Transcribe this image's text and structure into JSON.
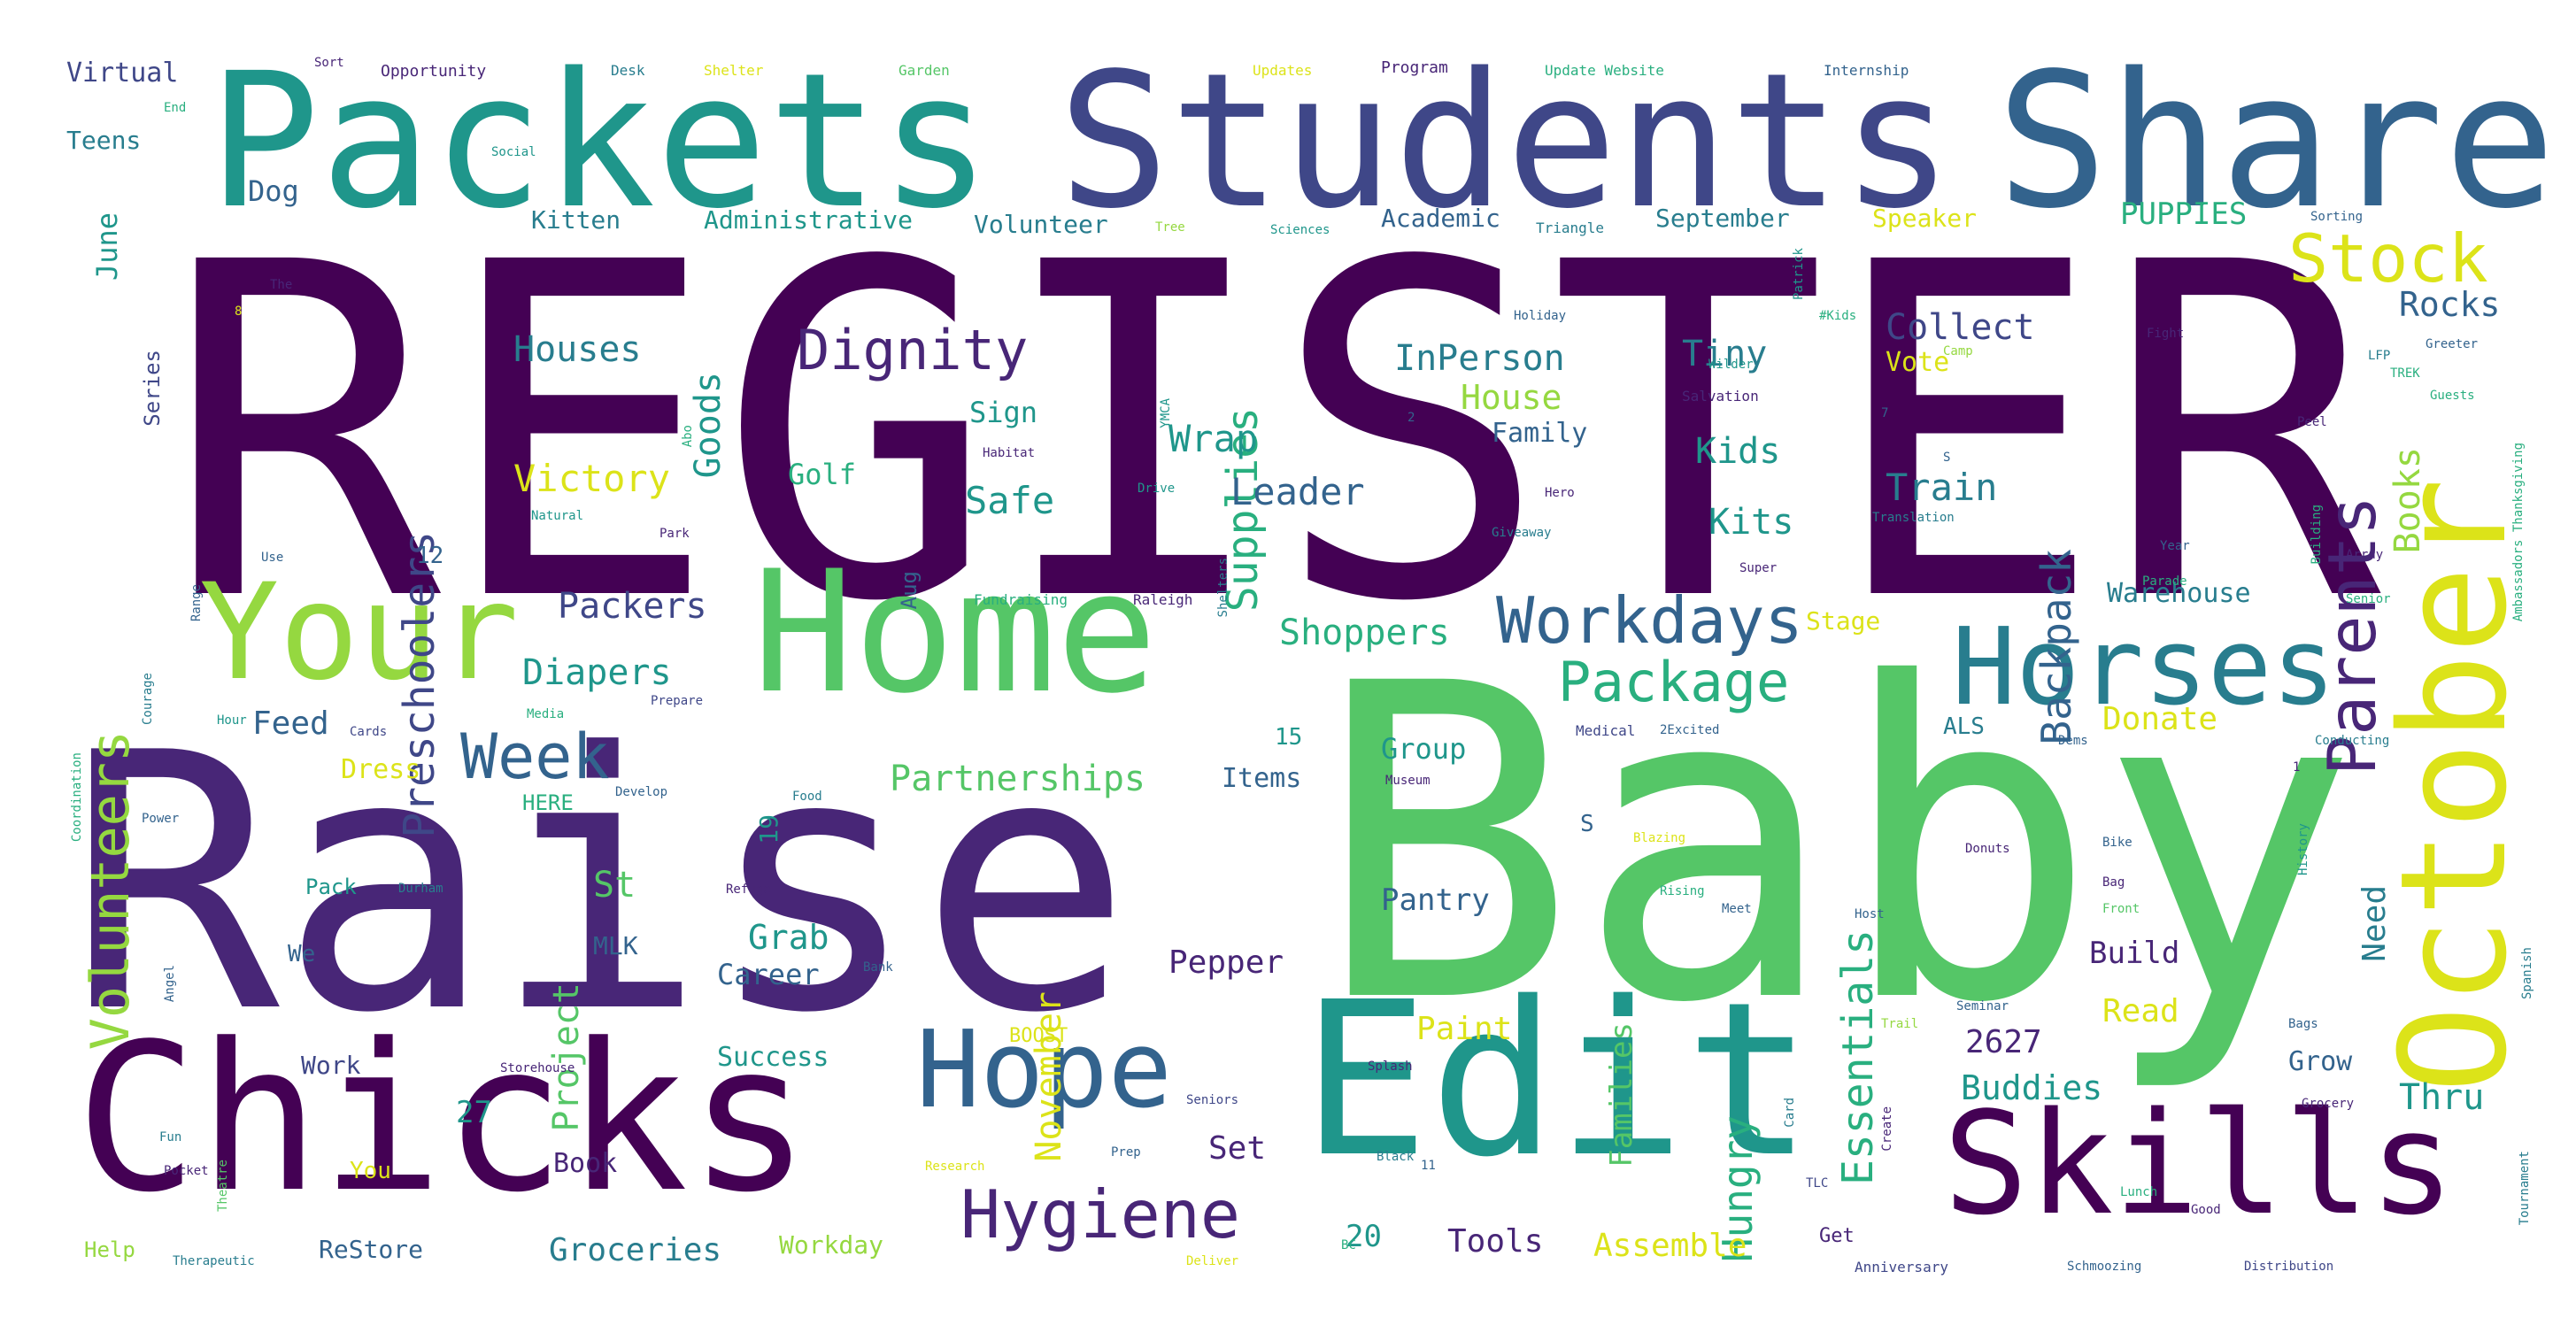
{
  "words": {
    "register": "REGISTER",
    "raise": "Raise",
    "baby": "Baby",
    "packets": "Packets",
    "students": "Students",
    "share": "Share",
    "home": "Home",
    "your": "Your",
    "chicks": "Chicks",
    "edit": "Edit",
    "skills": "Skills",
    "october": "October",
    "horses": "Horses",
    "hope": "Hope",
    "hygiene": "Hygiene",
    "workdays": "Workdays",
    "package": "Package",
    "week": "Week",
    "dignity": "Dignity",
    "parents": "Parents",
    "stock": "Stock",
    "volunteers": "Volunteers",
    "preschoolers": "Preschoolers",
    "goods": "Goods",
    "supplies": "Supplies",
    "backpack": "Backpack",
    "books": "Books",
    "essentials": "Essentials",
    "hungry": "Hungry",
    "november": "November",
    "project": "Project",
    "partnerships": "Partnerships",
    "victory": "Victory",
    "diapers": "Diapers",
    "packers": "Packers",
    "shoppers": "Shoppers",
    "leader": "Leader",
    "wrap": "Wrap",
    "safe": "Safe",
    "houses": "Houses",
    "inperson": "InPerson",
    "house": "House",
    "tiny": "Tiny",
    "kids": "Kids",
    "kits": "Kits",
    "collect": "Collect",
    "train": "Train",
    "rocks": "Rocks",
    "vote": "Vote",
    "family": "Family",
    "golf": "Golf",
    "sign": "Sign",
    "feed": "Feed",
    "dress": "Dress",
    "donate": "Donate",
    "group": "Group",
    "items": "Items",
    "pantry": "Pantry",
    "pepper": "Pepper",
    "grab": "Grab",
    "career": "Career",
    "st": "St",
    "mlk": "MLK",
    "build": "Build",
    "read": "Read",
    "need": "Need",
    "grow": "Grow",
    "thru": "Thru",
    "buddies": "Buddies",
    "n2627": "2627",
    "families": "Families",
    "tools": "Tools",
    "assemble": "Assemble",
    "groceries": "Groceries",
    "paint": "Paint",
    "set": "Set",
    "book": "Book",
    "success": "Success",
    "work": "Work",
    "n27": "27",
    "n20": "20",
    "restore": "ReStore",
    "workday": "Workday",
    "warehouse": "Warehouse",
    "stage": "Stage",
    "puppies": "PUPPIES",
    "speaker": "Speaker",
    "academic": "Academic",
    "september": "September",
    "volunteer": "Volunteer",
    "administrative": "Administrative",
    "kitten": "Kitten",
    "dog": "Dog",
    "june": "June",
    "teens": "Teens",
    "virtual": "Virtual",
    "series": "Series",
    "aug": "Aug",
    "n19": "19",
    "n12": "12",
    "here": "HERE",
    "pack": "Pack",
    "we": "We",
    "help": "Help",
    "boost": "BOOST",
    "you": "You",
    "als": "ALS",
    "n15": "15",
    "s": "S",
    "opportunity": "Opportunity",
    "desk": "Desk",
    "shelter": "Shelter",
    "garden": "Garden",
    "updates": "Updates",
    "program": "Program",
    "update_website": "Update Website",
    "internship": "Internship",
    "sort": "Sort",
    "end": "End",
    "social": "Social",
    "tree": "Tree",
    "sciences": "Sciences",
    "triangle": "Triangle",
    "patrick": "Patrick",
    "sorting": "Sorting",
    "holiday": "Holiday",
    "fight": "Fight",
    "greeter": "Greeter",
    "salvation": "Salvation",
    "translation": "Translation",
    "giveaway": "Giveaway",
    "natural": "Natural",
    "park": "Park",
    "fundraising": "Fundraising",
    "raleigh": "Raleigh",
    "shelters": "Shelters",
    "super": "Super",
    "parade": "Parade",
    "medical": "Medical",
    "2excited": "2Excited",
    "conducting": "Conducting",
    "museum": "Museum",
    "develop": "Develop",
    "food": "Food",
    "refuge": "Refuge",
    "durham": "Durham",
    "bank": "Bank",
    "storehouse": "Storehouse",
    "seniors": "Seniors",
    "splash": "Splash",
    "research": "Research",
    "therapeutic": "Therapeutic",
    "deliver": "Deliver",
    "anniversary": "Anniversary",
    "distribution": "Distribution",
    "schmoozing": "Schmoozing",
    "tournament": "Tournament",
    "spanish": "Spanish",
    "coordination": "Coordination",
    "angel": "Angel",
    "power": "Power",
    "courage": "Courage",
    "range": "Range",
    "use": "Use",
    "theatre": "Theatre",
    "pocket": "Pocket",
    "fun": "Fun",
    "black": "Black",
    "lunch": "Lunch",
    "grocery": "Grocery",
    "bags": "Bags",
    "trail": "Trail",
    "seminar": "Seminar",
    "bike": "Bike",
    "bag": "Bag",
    "front": "Front",
    "donuts": "Donuts",
    "cards": "Cards",
    "prepare": "Prepare",
    "media": "Media",
    "hour": "Hour",
    "camp": "Camp",
    "drive": "Drive",
    "hero": "Hero",
    "habitat": "Habitat",
    "year": "Year",
    "thanksgiving": "Ambassadors Thanksgiving",
    "building": "Building",
    "host": "Host",
    "meet": "Meet",
    "good": "Good",
    "card": "Card",
    "create": "Create",
    "history": "History",
    "peel": "Peel",
    "array": "Array",
    "ymca": "YMCA",
    "rising": "Rising",
    "get": "Get",
    "tlc": "TLC",
    "prep": "Prep",
    "the": "The",
    "kidsmnp": "#Kids",
    "wilder": "Wilder",
    "lfp": "LFP",
    "guests": "Guests",
    "dems": "Dems",
    "blazing": "Blazing",
    "abo": "Abo",
    "senior": "Senior",
    "trek": "TREK",
    "bc": "BC",
    "n11": "11",
    "n2": "2",
    "n1": "1",
    "n7": "7",
    "n8": "8",
    "s2": "S"
  },
  "colors": {
    "background": "#ffffff",
    "palette": [
      "#440154",
      "#482677",
      "#3f4788",
      "#33638d",
      "#287d8e",
      "#1f968b",
      "#29af7f",
      "#55c667",
      "#95d840",
      "#dce319",
      "#fde725"
    ]
  }
}
